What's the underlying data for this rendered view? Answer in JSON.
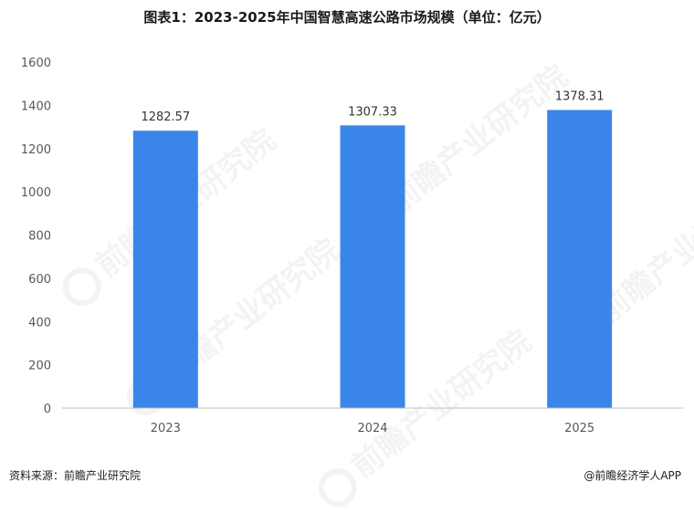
{
  "watermark": {
    "text": "前瞻产业研究院"
  },
  "source": "资料来源：前瞻产业研究院",
  "brand": "@前瞻经济学人APP",
  "colors": {
    "bar": "#3a86e8",
    "axis": "#bfbfbf"
  },
  "chart_data": {
    "type": "bar",
    "title": "图表1：2023-2025年中国智慧高速公路市场规模（单位：亿元）",
    "categories": [
      "2023",
      "2024",
      "2025"
    ],
    "values": [
      1282.57,
      1307.33,
      1378.31
    ],
    "data_labels": [
      "1282.57",
      "1307.33",
      "1378.31"
    ],
    "ylim": [
      0,
      1600
    ],
    "yticks": [
      0,
      200,
      400,
      600,
      800,
      1000,
      1200,
      1400,
      1600
    ],
    "grid": false,
    "xlabel": "",
    "ylabel": ""
  }
}
